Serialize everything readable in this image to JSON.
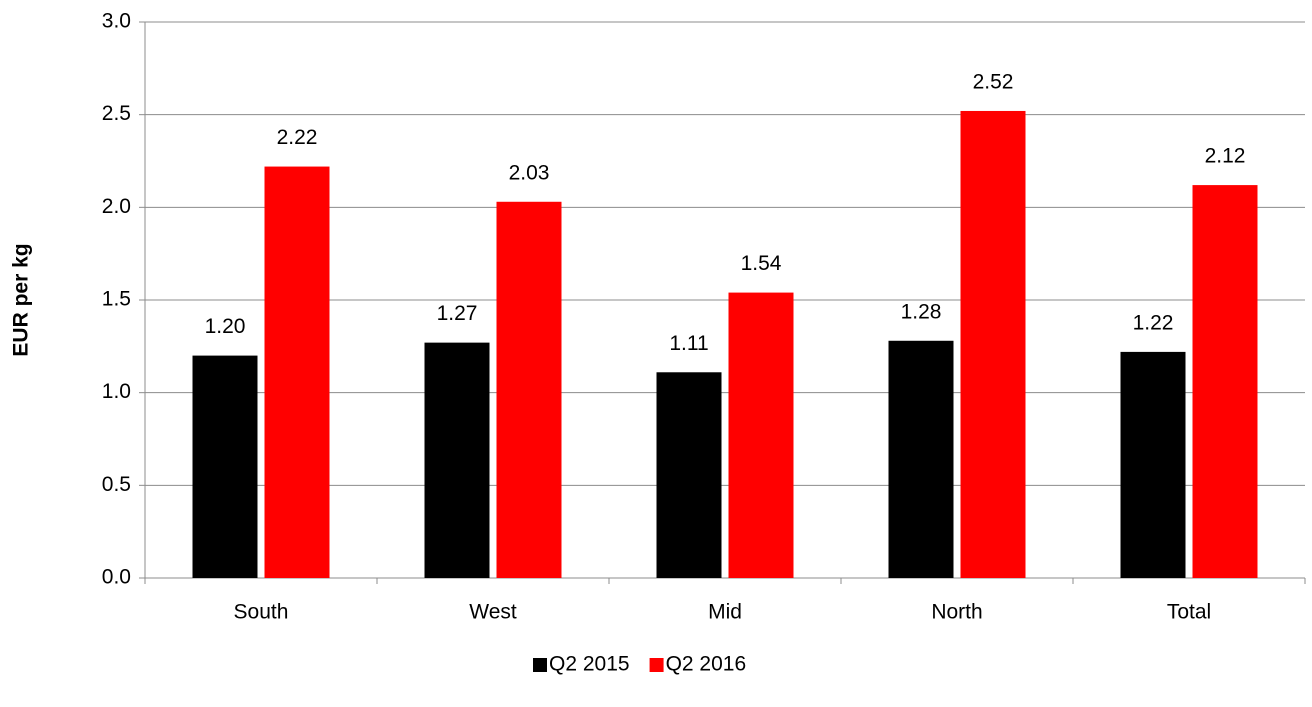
{
  "chart_data": {
    "type": "bar",
    "y_label": "EUR per kg",
    "categories": [
      "South",
      "West",
      "Mid",
      "North",
      "Total"
    ],
    "series": [
      {
        "name": "Q2 2015",
        "color": "#000000",
        "values": [
          1.2,
          1.27,
          1.11,
          1.28,
          1.22
        ],
        "value_labels": [
          "1.20",
          "1.27",
          "1.11",
          "1.28",
          "1.22"
        ]
      },
      {
        "name": "Q2 2016",
        "color": "#ff0000",
        "values": [
          2.22,
          2.03,
          1.54,
          2.52,
          2.12
        ],
        "value_labels": [
          "2.22",
          "2.03",
          "1.54",
          "2.52",
          "2.12"
        ]
      }
    ],
    "ylim": [
      0,
      3
    ],
    "yticks": [
      {
        "value": 0,
        "label": "0.0"
      },
      {
        "value": 0.5,
        "label": "0.5"
      },
      {
        "value": 1,
        "label": "1.0"
      },
      {
        "value": 1.5,
        "label": "1.5"
      },
      {
        "value": 2,
        "label": "2.0"
      },
      {
        "value": 2.5,
        "label": "2.5"
      },
      {
        "value": 3,
        "label": "3.0"
      }
    ],
    "grid": true,
    "legend": "bottom"
  }
}
